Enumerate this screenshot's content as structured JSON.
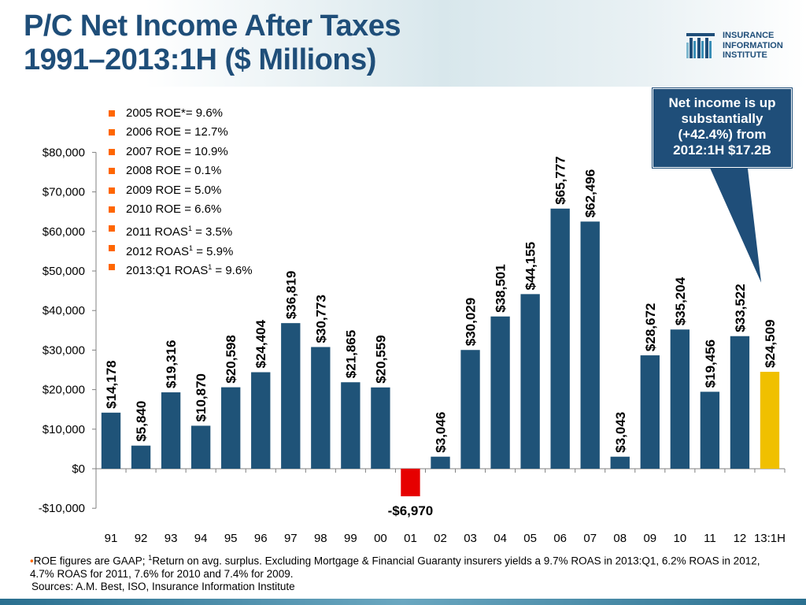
{
  "title": {
    "line1": "P/C Net Income After Taxes",
    "line2": "1991–2013:1H ($ Millions)"
  },
  "logo": {
    "line1": "INSURANCE",
    "line2": "INFORMATION",
    "line3": "INSTITUTE"
  },
  "callout": {
    "text": "Net income is up substantially (+42.4%) from 2012:1H $17.2B"
  },
  "legend": [
    {
      "text": "2005 ROE*= 9.6%"
    },
    {
      "text": "2006 ROE = 12.7%"
    },
    {
      "text": "2007 ROE = 10.9%"
    },
    {
      "text": "2008 ROE = 0.1%"
    },
    {
      "text": "2009 ROE = 5.0%"
    },
    {
      "text": "2010 ROE = 6.6%"
    },
    {
      "text": "2011 ROAS",
      "sup": "1",
      "rest": " = 3.5%"
    },
    {
      "text": "2012 ROAS",
      "sup": "1",
      "rest": " = 5.9%"
    },
    {
      "text": "2013:Q1 ROAS",
      "sup": "1",
      "rest": " = 9.6%"
    }
  ],
  "footnote": {
    "bullet": "•",
    "part1": "ROE figures are GAAP; ",
    "sup": "1",
    "part2": "Return on avg. surplus.  Excluding Mortgage & Financial Guaranty insurers yields a 9.7% ROAS in 2013:Q1, 6.2% ROAS in 2012, 4.7% ROAS for 2011, 7.6% for 2010 and 7.4% for 2009."
  },
  "sources": "Sources: A.M. Best, ISO, Insurance Information Institute",
  "colors": {
    "bar": "#1f5378",
    "negative": "#e60000",
    "highlight": "#f0c000",
    "title": "#1f4e79",
    "bullet": "#ff6600"
  },
  "chart_data": {
    "type": "bar",
    "categories": [
      "91",
      "92",
      "93",
      "94",
      "95",
      "96",
      "97",
      "98",
      "99",
      "00",
      "01",
      "02",
      "03",
      "04",
      "05",
      "06",
      "07",
      "08",
      "09",
      "10",
      "11",
      "12",
      "13:1H"
    ],
    "values": [
      14178,
      5840,
      19316,
      10870,
      20598,
      24404,
      36819,
      30773,
      21865,
      20559,
      -6970,
      3046,
      30029,
      38501,
      44155,
      65777,
      62496,
      3043,
      28672,
      35204,
      19456,
      33522,
      24509
    ],
    "data_labels": [
      "$14,178",
      "$5,840",
      "$19,316",
      "$10,870",
      "$20,598",
      "$24,404",
      "$36,819",
      "$30,773",
      "$21,865",
      "$20,559",
      "-$6,970",
      "$3,046",
      "$30,029",
      "$38,501",
      "$44,155",
      "$65,777",
      "$62,496",
      "$3,043",
      "$28,672",
      "$35,204",
      "$19,456",
      "$33,522",
      "$24,509"
    ],
    "ylim": [
      -10000,
      80000
    ],
    "yticks": [
      80000,
      70000,
      60000,
      50000,
      40000,
      30000,
      20000,
      10000,
      0,
      -10000
    ],
    "ytick_labels": [
      "$80,000",
      "$70,000",
      "$60,000",
      "$50,000",
      "$40,000",
      "$30,000",
      "$20,000",
      "$10,000",
      "$0",
      "-$10,000"
    ],
    "highlight_category": "13:1H",
    "grid": false
  }
}
